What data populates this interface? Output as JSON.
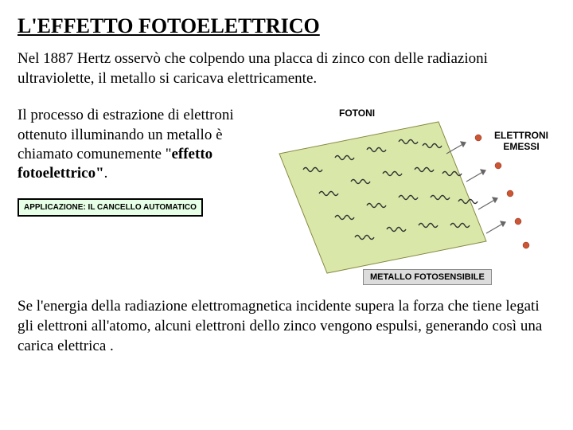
{
  "title": "L'EFFETTO FOTOELETTRICO",
  "intro": "Nel 1887 Hertz osservò che colpendo una placca di zinco con delle radiazioni ultraviolette, il metallo si caricava elettricamente.",
  "process_pre": "Il processo di estrazione di elettroni ottenuto illuminando un metallo è chiamato comunemente \"",
  "process_bold": "effetto fotoelettrico\"",
  "process_post": ".",
  "app_box": "APPLICAZIONE: IL CANCELLO AUTOMATICO",
  "figure": {
    "label_photons": "FOTONI",
    "label_electrons_line1": "ELETTRONI",
    "label_electrons_line2": "EMESSI",
    "caption": "METALLO FOTOSENSIBILE",
    "slab_fill": "#d9e8a8",
    "slab_stroke": "#888844",
    "photon_stroke": "#333333",
    "electron_fill": "#cc5533",
    "arrow_stroke": "#666666",
    "background": "#ffffff"
  },
  "bottom": "Se l'energia della radiazione elettromagnetica incidente supera la forza che tiene legati gli elettroni all'atomo, alcuni elettroni dello zinco vengono espulsi, generando così una carica elettrica ."
}
